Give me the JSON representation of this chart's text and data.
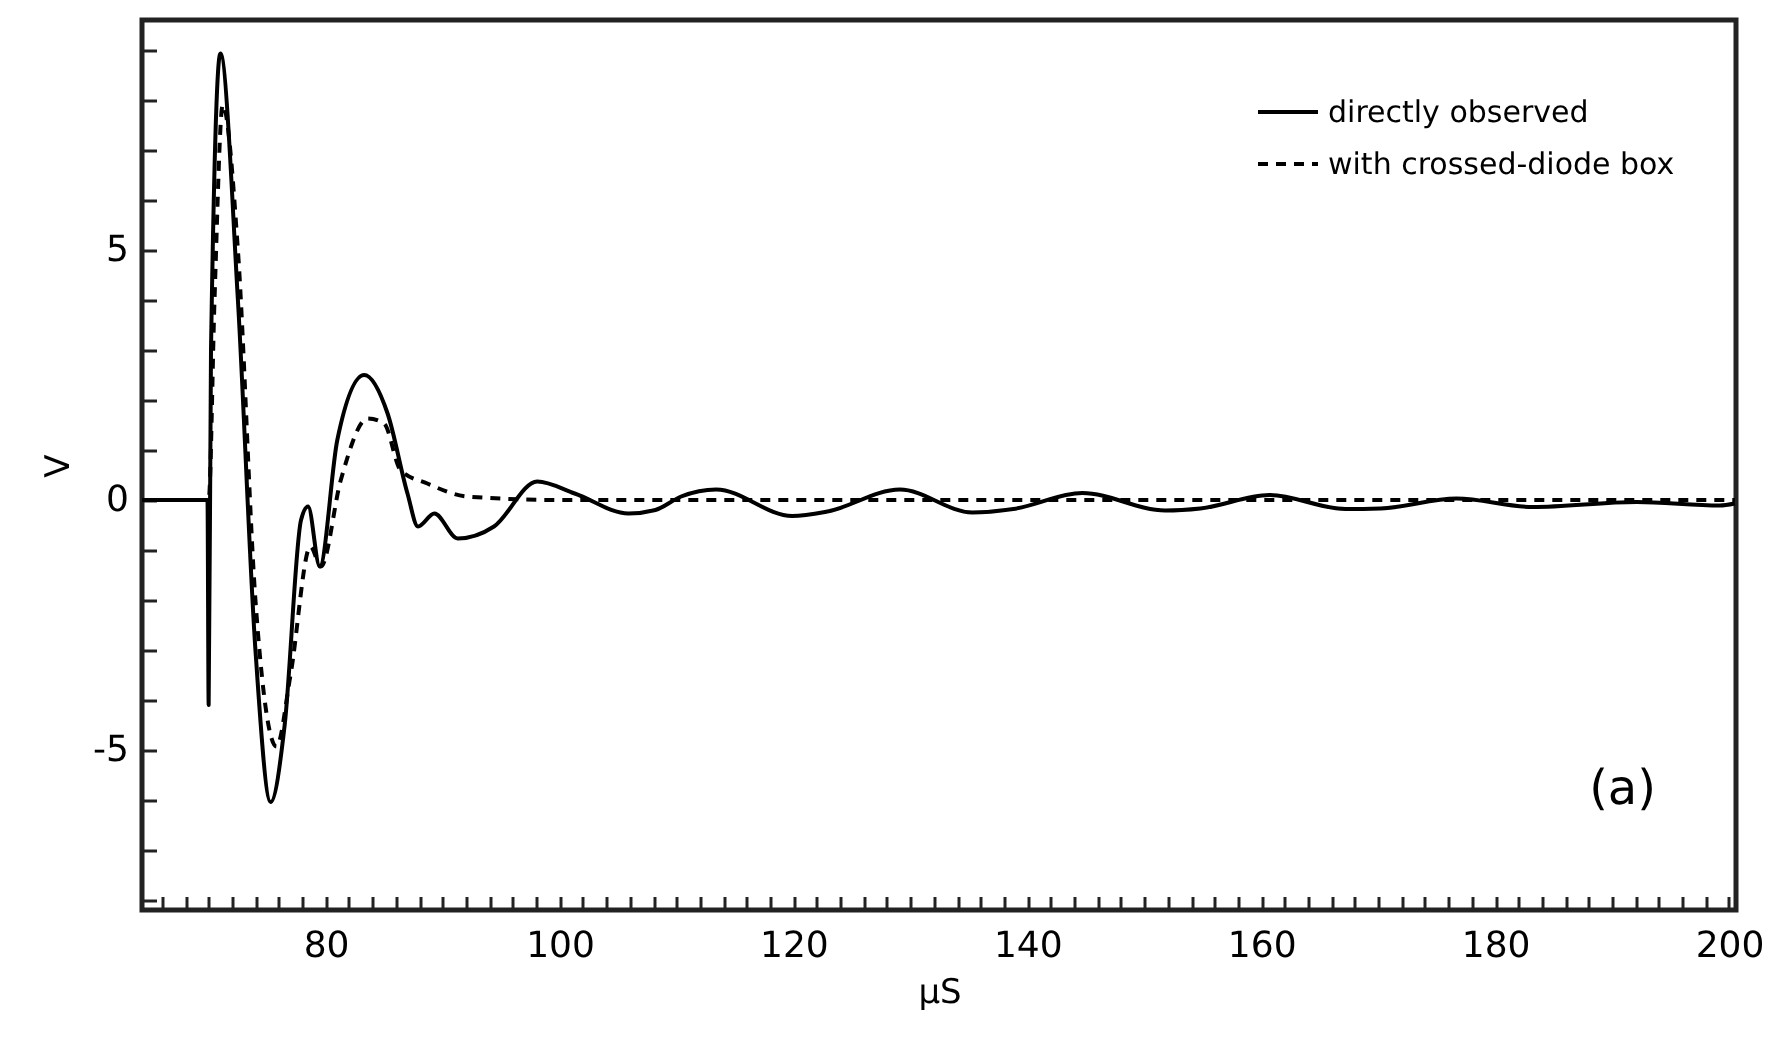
{
  "chart_data": {
    "type": "line",
    "xlabel": "µS",
    "ylabel": "V",
    "annotations": [
      "(a)"
    ],
    "xlim": [
      64.3,
      200.6
    ],
    "ylim": [
      -8.2,
      9.6
    ],
    "xticks": [
      {
        "value": 66,
        "label": null
      },
      {
        "value": 68,
        "label": null
      },
      {
        "value": 70,
        "label": null
      },
      {
        "value": 72,
        "label": null
      },
      {
        "value": 74,
        "label": null
      },
      {
        "value": 76,
        "label": null
      },
      {
        "value": 78,
        "label": null
      },
      80,
      {
        "value": 82,
        "label": null
      },
      {
        "value": 84,
        "label": null
      },
      {
        "value": 86,
        "label": null
      },
      {
        "value": 88,
        "label": null
      },
      {
        "value": 90,
        "label": null
      },
      {
        "value": 92,
        "label": null
      },
      {
        "value": 94,
        "label": null
      },
      {
        "value": 96,
        "label": null
      },
      {
        "value": 98,
        "label": null
      },
      100,
      {
        "value": 102,
        "label": null
      },
      {
        "value": 104,
        "label": null
      },
      {
        "value": 106,
        "label": null
      },
      {
        "value": 108,
        "label": null
      },
      {
        "value": 110,
        "label": null
      },
      {
        "value": 112,
        "label": null
      },
      {
        "value": 114,
        "label": null
      },
      {
        "value": 116,
        "label": null
      },
      {
        "value": 118,
        "label": null
      },
      120,
      {
        "value": 122,
        "label": null
      },
      {
        "value": 124,
        "label": null
      },
      {
        "value": 126,
        "label": null
      },
      {
        "value": 128,
        "label": null
      },
      {
        "value": 130,
        "label": null
      },
      {
        "value": 132,
        "label": null
      },
      {
        "value": 134,
        "label": null
      },
      {
        "value": 136,
        "label": null
      },
      {
        "value": 138,
        "label": null
      },
      140,
      {
        "value": 142,
        "label": null
      },
      {
        "value": 144,
        "label": null
      },
      {
        "value": 146,
        "label": null
      },
      {
        "value": 148,
        "label": null
      },
      {
        "value": 150,
        "label": null
      },
      {
        "value": 152,
        "label": null
      },
      {
        "value": 154,
        "label": null
      },
      {
        "value": 156,
        "label": null
      },
      {
        "value": 158,
        "label": null
      },
      160,
      {
        "value": 162,
        "label": null
      },
      {
        "value": 164,
        "label": null
      },
      {
        "value": 166,
        "label": null
      },
      {
        "value": 168,
        "label": null
      },
      {
        "value": 170,
        "label": null
      },
      {
        "value": 172,
        "label": null
      },
      {
        "value": 174,
        "label": null
      },
      {
        "value": 176,
        "label": null
      },
      {
        "value": 178,
        "label": null
      },
      180,
      {
        "value": 182,
        "label": null
      },
      {
        "value": 184,
        "label": null
      },
      {
        "value": 186,
        "label": null
      },
      {
        "value": 188,
        "label": null
      },
      {
        "value": 190,
        "label": null
      },
      {
        "value": 192,
        "label": null
      },
      {
        "value": 194,
        "label": null
      },
      {
        "value": 196,
        "label": null
      },
      {
        "value": 198,
        "label": null
      },
      200
    ],
    "yticks": [
      {
        "value": -8,
        "label": null
      },
      {
        "value": -7,
        "label": null
      },
      {
        "value": -6,
        "label": null
      },
      -5,
      {
        "value": -4,
        "label": null
      },
      {
        "value": -3,
        "label": null
      },
      {
        "value": -2,
        "label": null
      },
      {
        "value": -1,
        "label": null
      },
      0,
      {
        "value": 1,
        "label": null
      },
      {
        "value": 2,
        "label": null
      },
      {
        "value": 3,
        "label": null
      },
      {
        "value": 4,
        "label": null
      },
      5,
      {
        "value": 6,
        "label": null
      },
      {
        "value": 7,
        "label": null
      },
      {
        "value": 8,
        "label": null
      },
      {
        "value": 9,
        "label": null
      }
    ],
    "grid": false,
    "legend": "top right",
    "marker": "none",
    "series": [
      {
        "name": "directly observed",
        "color": "#000000",
        "line_style": "solid",
        "x": [
          64.3,
          69.9,
          70.0,
          70.2,
          71.0,
          72.5,
          74.0,
          75.3,
          76.5,
          77.9,
          78.5,
          79.5,
          81.0,
          83.3,
          85.3,
          87.0,
          87.9,
          89.3,
          91.3,
          94.4,
          98.1,
          101.3,
          105.9,
          108.2,
          110.4,
          113.4,
          119.9,
          122.9,
          129.1,
          135.3,
          138.8,
          144.7,
          151.8,
          154.8,
          160.7,
          167.2,
          170.2,
          176.7,
          183.2,
          192.1,
          199.2,
          200.5
        ],
        "values": [
          0,
          0,
          -4.1,
          3,
          8.93,
          4,
          -3,
          -6.04,
          -4.5,
          -0.4,
          -0.13,
          -1.33,
          1.2,
          2.5,
          1.73,
          0.13,
          -0.53,
          -0.27,
          -0.77,
          -0.53,
          0.37,
          0.13,
          -0.27,
          -0.2,
          0.07,
          0.21,
          -0.32,
          -0.23,
          0.21,
          -0.25,
          -0.18,
          0.14,
          -0.21,
          -0.17,
          0.1,
          -0.18,
          -0.17,
          0.03,
          -0.14,
          -0.04,
          -0.11,
          -0.07
        ]
      },
      {
        "name": "with crossed-diode box",
        "color": "#000000",
        "line_style": "dashed",
        "x": [
          64.3,
          70.0,
          70.5,
          71.2,
          72.5,
          74.0,
          75.8,
          77.0,
          78.7,
          79.6,
          81.3,
          83.6,
          85.0,
          86.4,
          88.7,
          92.1,
          100,
          150,
          200.5
        ],
        "values": [
          0,
          0,
          4,
          7.9,
          5,
          -2,
          -4.93,
          -3.5,
          -0.93,
          -1.33,
          0.4,
          1.63,
          1.53,
          0.6,
          0.33,
          0.07,
          0,
          0,
          0
        ]
      }
    ]
  }
}
